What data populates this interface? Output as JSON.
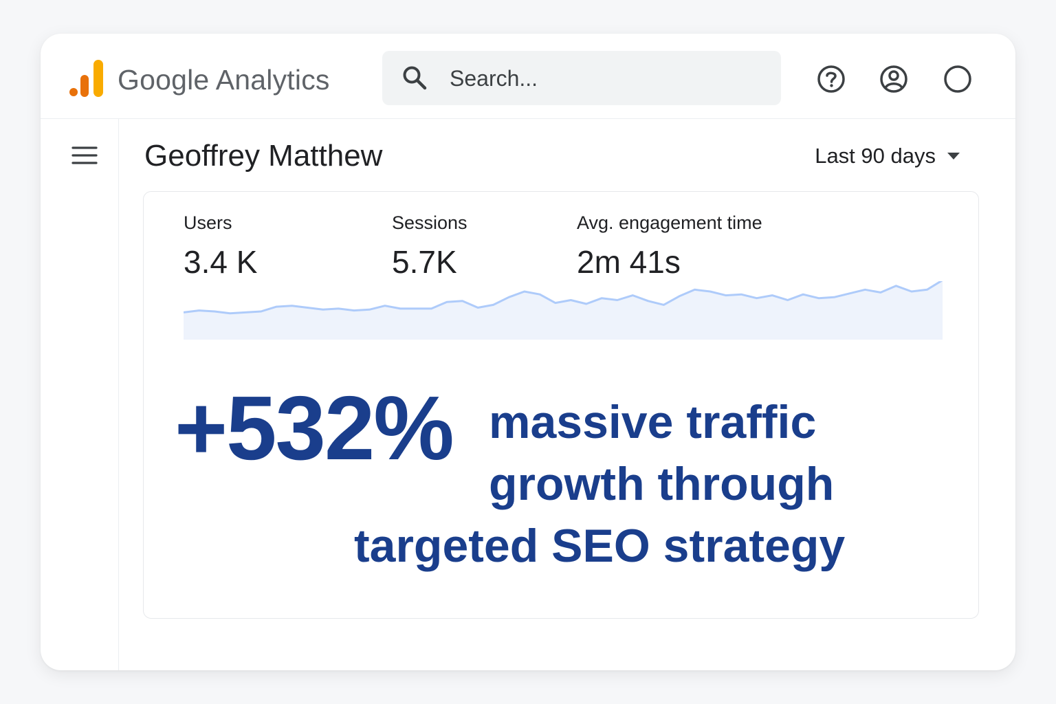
{
  "app": {
    "title": "Google Analytics"
  },
  "search": {
    "placeholder": "Search..."
  },
  "header": {
    "icons": [
      "help-icon",
      "account-icon",
      "circle-icon"
    ]
  },
  "page": {
    "title": "Geoffrey Matthew",
    "date_range": "Last 90 days"
  },
  "metrics": [
    {
      "label": "Users",
      "value": "3.4 K"
    },
    {
      "label": "Sessions",
      "value": "5.7K"
    },
    {
      "label": "Avg. engagement time",
      "value": "2m 41s"
    }
  ],
  "highlight": {
    "percent": "+532%",
    "line1": "massive traffic",
    "line2": "growth through",
    "line3": "targeted SEO strategy"
  },
  "colors": {
    "accent": "#1a3e8c",
    "logo_orange": "#e8710a",
    "logo_yellow": "#f9ab00",
    "sparkline": "#aecbfa",
    "sparkline_fill": "#eef3fc"
  },
  "chart_data": {
    "type": "area",
    "title": "",
    "xlabel": "",
    "ylabel": "",
    "grid": false,
    "series": [
      {
        "values": [
          20,
          22,
          21,
          19,
          20,
          21,
          26,
          27,
          25,
          23,
          24,
          22,
          23,
          27,
          24,
          24,
          24,
          31,
          32,
          25,
          28,
          36,
          42,
          39,
          30,
          33,
          29,
          35,
          33,
          38,
          32,
          28,
          37,
          44,
          42,
          38,
          39,
          35,
          38,
          33,
          39,
          35,
          36,
          40,
          44,
          41,
          48,
          42,
          44,
          54
        ]
      }
    ]
  }
}
